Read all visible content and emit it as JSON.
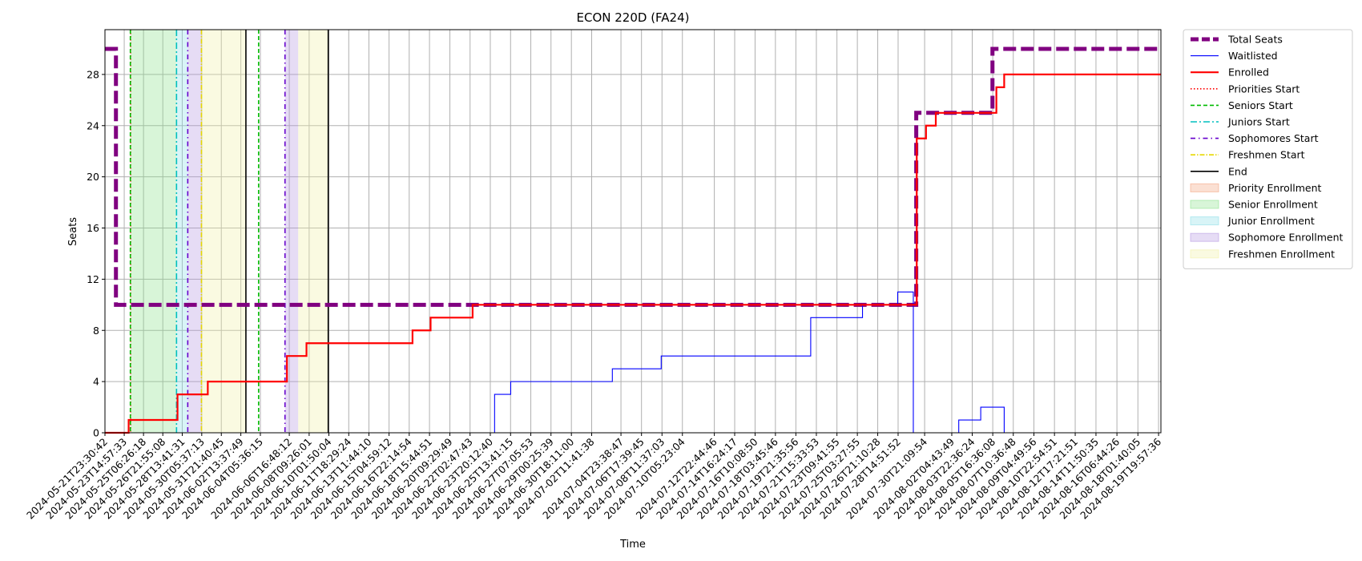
{
  "chart_data": {
    "type": "line",
    "title": "ECON 220D (FA24)",
    "xlabel": "Time",
    "ylabel": "Seats",
    "x_type": "datetime",
    "xlim": [
      "2024-05-21T23:30:42",
      "2024-08-20T00:45:00"
    ],
    "ylim": [
      0,
      31.5
    ],
    "yticks": [
      0,
      4,
      8,
      12,
      16,
      20,
      24,
      28
    ],
    "grid": true,
    "legend_position": "outside-top-right",
    "xtick_labels": [
      "2024-05-21T23:30:42",
      "2024-05-23T14:57:33",
      "2024-05-25T06:26:18",
      "2024-05-26T21:55:08",
      "2024-05-28T13:41:31",
      "2024-05-30T05:37:13",
      "2024-05-31T21:40:45",
      "2024-06-02T13:37:49",
      "2024-06-04T05:36:15",
      "2024-06-06T16:48:12",
      "2024-06-08T09:26:01",
      "2024-06-10T01:50:04",
      "2024-06-11T18:29:24",
      "2024-06-13T11:44:10",
      "2024-06-15T04:59:12",
      "2024-06-16T22:14:54",
      "2024-06-18T15:44:51",
      "2024-06-20T09:29:49",
      "2024-06-22T02:47:43",
      "2024-06-23T20:12:40",
      "2024-06-25T13:41:15",
      "2024-06-27T07:05:53",
      "2024-06-29T00:25:39",
      "2024-06-30T18:11:00",
      "2024-07-02T11:41:38",
      "2024-07-04T23:38:47",
      "2024-07-06T17:39:45",
      "2024-07-08T11:37:03",
      "2024-07-10T05:23:04",
      "2024-07-12T22:44:46",
      "2024-07-14T16:24:17",
      "2024-07-16T10:08:50",
      "2024-07-18T03:45:46",
      "2024-07-19T21:35:56",
      "2024-07-21T15:33:53",
      "2024-07-23T09:41:55",
      "2024-07-25T03:27:55",
      "2024-07-26T21:10:28",
      "2024-07-28T14:51:52",
      "2024-07-30T21:09:54",
      "2024-08-02T04:43:49",
      "2024-08-03T22:36:24",
      "2024-08-05T16:36:08",
      "2024-08-07T10:36:48",
      "2024-08-09T04:49:56",
      "2024-08-10T22:54:51",
      "2024-08-12T17:21:51",
      "2024-08-14T11:50:35",
      "2024-08-16T06:44:26",
      "2024-08-18T01:40:05",
      "2024-08-19T19:57:36"
    ],
    "series": [
      {
        "name": "Total Seats",
        "color": "#800080",
        "style": "dashed-thick",
        "points": [
          [
            "2024-05-21T23:30:42",
            30
          ],
          [
            "2024-05-22T22:00:00",
            30
          ],
          [
            "2024-05-22T22:00:00",
            10
          ],
          [
            "2024-07-30T04:00:00",
            10
          ],
          [
            "2024-07-30T04:00:00",
            25
          ],
          [
            "2024-08-05T16:00:00",
            25
          ],
          [
            "2024-08-05T16:00:00",
            30
          ],
          [
            "2024-08-20T00:45:00",
            30
          ]
        ]
      },
      {
        "name": "Waitlisted",
        "color": "#0000ff",
        "style": "solid-thin",
        "points": [
          [
            "2024-05-21T23:30:42",
            0
          ],
          [
            "2024-06-24T05:00:00",
            0
          ],
          [
            "2024-06-24T05:00:00",
            3
          ],
          [
            "2024-06-25T14:00:00",
            3
          ],
          [
            "2024-06-25T14:00:00",
            4
          ],
          [
            "2024-07-04T06:00:00",
            4
          ],
          [
            "2024-07-04T06:00:00",
            5
          ],
          [
            "2024-07-08T10:00:00",
            5
          ],
          [
            "2024-07-08T10:00:00",
            6
          ],
          [
            "2024-07-21T04:00:00",
            6
          ],
          [
            "2024-07-21T04:00:00",
            9
          ],
          [
            "2024-07-25T14:00:00",
            9
          ],
          [
            "2024-07-25T14:00:00",
            10
          ],
          [
            "2024-07-28T14:00:00",
            10
          ],
          [
            "2024-07-28T14:00:00",
            11
          ],
          [
            "2024-07-29T22:00:00",
            11
          ],
          [
            "2024-07-29T22:00:00",
            0
          ],
          [
            "2024-08-02T19:00:00",
            0
          ],
          [
            "2024-08-02T19:00:00",
            1
          ],
          [
            "2024-08-04T16:00:00",
            1
          ],
          [
            "2024-08-04T16:00:00",
            2
          ],
          [
            "2024-08-06T16:00:00",
            2
          ],
          [
            "2024-08-06T16:00:00",
            0
          ],
          [
            "2024-08-20T00:45:00",
            0
          ]
        ]
      },
      {
        "name": "Enrolled",
        "color": "#ff0000",
        "style": "solid-thick",
        "points": [
          [
            "2024-05-21T23:30:42",
            0
          ],
          [
            "2024-05-24T00:00:00",
            0
          ],
          [
            "2024-05-24T00:00:00",
            1
          ],
          [
            "2024-05-28T04:00:00",
            1
          ],
          [
            "2024-05-28T04:00:00",
            3
          ],
          [
            "2024-05-30T18:00:00",
            3
          ],
          [
            "2024-05-30T18:00:00",
            4
          ],
          [
            "2024-06-06T12:00:00",
            4
          ],
          [
            "2024-06-06T12:00:00",
            6
          ],
          [
            "2024-06-08T04:00:00",
            6
          ],
          [
            "2024-06-08T04:00:00",
            7
          ],
          [
            "2024-06-17T05:00:00",
            7
          ],
          [
            "2024-06-17T05:00:00",
            8
          ],
          [
            "2024-06-18T18:00:00",
            8
          ],
          [
            "2024-06-18T18:00:00",
            9
          ],
          [
            "2024-06-22T08:00:00",
            9
          ],
          [
            "2024-06-22T08:00:00",
            10
          ],
          [
            "2024-07-30T05:00:00",
            10
          ],
          [
            "2024-07-30T05:00:00",
            23
          ],
          [
            "2024-07-31T00:00:00",
            23
          ],
          [
            "2024-07-31T00:00:00",
            24
          ],
          [
            "2024-07-31T20:00:00",
            24
          ],
          [
            "2024-07-31T20:00:00",
            25
          ],
          [
            "2024-08-06T00:00:00",
            25
          ],
          [
            "2024-08-06T00:00:00",
            27
          ],
          [
            "2024-08-06T16:00:00",
            27
          ],
          [
            "2024-08-06T16:00:00",
            28
          ],
          [
            "2024-08-20T00:45:00",
            28
          ]
        ]
      }
    ],
    "markers": [
      {
        "name": "Priorities Start",
        "color": "#ff0000",
        "dash": "1.5,2.5",
        "at": [
          "2024-05-24T04:00:00"
        ]
      },
      {
        "name": "Seniors Start",
        "color": "#00bb00",
        "dash": "5,3",
        "at": [
          "2024-05-24T03:30:00",
          "2024-06-04T02:00:00"
        ]
      },
      {
        "name": "Juniors Start",
        "color": "#00bfbf",
        "dash": "8,3,2,3",
        "at": [
          "2024-05-28T02:00:00"
        ]
      },
      {
        "name": "Sophomores Start",
        "color": "#6600cc",
        "dash": "6,4,1.5,4",
        "at": [
          "2024-05-29T01:00:00",
          "2024-06-06T08:00:00"
        ]
      },
      {
        "name": "Freshmen Start",
        "color": "#e6d800",
        "dash": "6,2,1.5,2",
        "at": [
          "2024-05-30T05:00:00"
        ]
      },
      {
        "name": "End",
        "color": "#000000",
        "dash": "",
        "at": [
          "2024-06-03T00:00:00",
          "2024-06-10T00:30:00"
        ]
      }
    ],
    "periods": [
      {
        "name": "Priority Enrollment",
        "color": "#f4a582",
        "ranges": [
          [
            "2024-05-24T03:30:00",
            "2024-05-24T04:00:00"
          ]
        ]
      },
      {
        "name": "Senior Enrollment",
        "color": "#8fe38f",
        "ranges": [
          [
            "2024-05-24T04:00:00",
            "2024-05-28T02:00:00"
          ]
        ]
      },
      {
        "name": "Junior Enrollment",
        "color": "#8fe0e8",
        "ranges": [
          [
            "2024-05-28T02:00:00",
            "2024-05-29T01:00:00"
          ]
        ]
      },
      {
        "name": "Sophomore Enrollment",
        "color": "#b79be3",
        "ranges": [
          [
            "2024-05-29T01:00:00",
            "2024-05-30T05:00:00"
          ],
          [
            "2024-06-06T08:00:00",
            "2024-06-07T11:00:00"
          ]
        ]
      },
      {
        "name": "Freshmen Enrollment",
        "color": "#f2f2a8",
        "ranges": [
          [
            "2024-05-30T05:00:00",
            "2024-06-03T00:00:00"
          ],
          [
            "2024-06-07T11:00:00",
            "2024-06-10T00:30:00"
          ]
        ]
      }
    ]
  }
}
